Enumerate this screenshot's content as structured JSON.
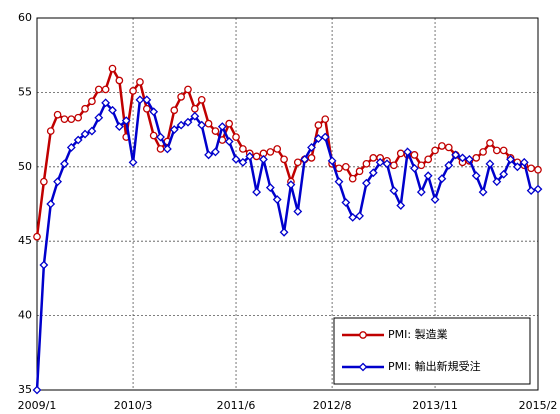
{
  "chart_data": {
    "type": "line",
    "categories": [
      "2009/1",
      null,
      null,
      null,
      null,
      null,
      null,
      null,
      null,
      null,
      null,
      null,
      null,
      null,
      "2010/3",
      null,
      null,
      null,
      null,
      null,
      null,
      null,
      null,
      null,
      null,
      null,
      null,
      null,
      null,
      "2011/6",
      null,
      null,
      null,
      null,
      null,
      null,
      null,
      null,
      null,
      null,
      null,
      null,
      null,
      "2012/8",
      null,
      null,
      null,
      null,
      null,
      null,
      null,
      null,
      null,
      null,
      null,
      null,
      null,
      null,
      "2013/11",
      null,
      null,
      null,
      null,
      null,
      null,
      null,
      null,
      null,
      null,
      null,
      null,
      null,
      null,
      "2015/2"
    ],
    "series": [
      {
        "name": "PMI: 製造業",
        "color": "#c00000",
        "marker": "circle",
        "values": [
          45.3,
          49.0,
          52.4,
          53.5,
          53.2,
          53.2,
          53.3,
          53.9,
          54.4,
          55.2,
          55.2,
          56.6,
          55.8,
          52.0,
          55.1,
          55.7,
          53.9,
          52.1,
          51.2,
          51.7,
          53.8,
          54.7,
          55.2,
          53.9,
          54.5,
          52.9,
          52.4,
          51.8,
          52.9,
          52.0,
          51.2,
          50.9,
          50.7,
          50.9,
          51.0,
          51.2,
          50.5,
          49.0,
          50.3,
          50.5,
          50.6,
          52.8,
          53.2,
          50.2,
          49.9,
          50.0,
          49.2,
          49.7,
          50.2,
          50.6,
          50.6,
          50.4,
          50.1,
          50.9,
          50.8,
          50.8,
          50.1,
          50.5,
          51.1,
          51.4,
          51.3,
          50.8,
          50.3,
          50.4,
          50.6,
          51.0,
          51.6,
          51.1,
          51.1,
          50.6,
          50.3,
          50.1,
          49.9,
          49.8
        ]
      },
      {
        "name": "PMI: 輸出新規受注",
        "color": "#0000cc",
        "marker": "diamond",
        "values": [
          35.0,
          43.4,
          47.5,
          49.0,
          50.2,
          51.3,
          51.8,
          52.2,
          52.4,
          53.3,
          54.3,
          53.8,
          52.7,
          53.1,
          50.3,
          54.5,
          54.5,
          53.7,
          52.0,
          51.2,
          52.5,
          52.8,
          53.0,
          53.4,
          52.8,
          50.8,
          51.0,
          52.7,
          51.7,
          50.5,
          50.3,
          50.7,
          48.3,
          50.5,
          48.6,
          47.8,
          45.6,
          48.8,
          47.0,
          50.5,
          51.3,
          51.9,
          52.0,
          50.4,
          49.0,
          47.6,
          46.6,
          46.7,
          48.9,
          49.6,
          50.3,
          50.2,
          48.4,
          47.4,
          51.0,
          49.9,
          48.3,
          49.4,
          47.8,
          49.2,
          50.1,
          50.8,
          50.6,
          50.5,
          49.4,
          48.3,
          50.2,
          49.0,
          49.5,
          50.5,
          50.0,
          50.3,
          48.4,
          48.5
        ]
      }
    ],
    "ylim": [
      35,
      60
    ],
    "yticks": [
      35,
      40,
      45,
      50,
      55,
      60
    ],
    "grid": true,
    "legend": "lower right"
  }
}
